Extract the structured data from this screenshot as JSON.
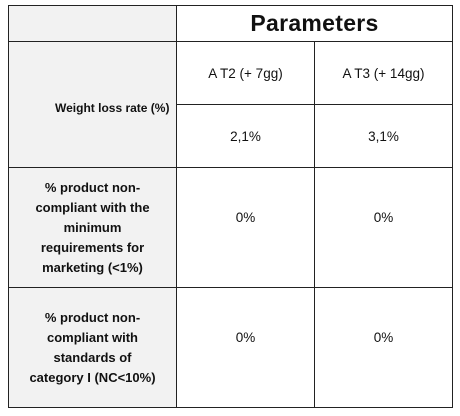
{
  "table": {
    "title": "Parameters",
    "columns": [
      "A T2 (+ 7gg)",
      "A T3 (+ 14gg)"
    ],
    "rows": [
      {
        "label": "Weight loss rate (%)",
        "values": [
          "2,1%",
          "3,1%"
        ]
      },
      {
        "label_lines": [
          "% product non-",
          "compliant with the",
          "minimum",
          "requirements for",
          "marketing (<1%)"
        ],
        "values": [
          "0%",
          "0%"
        ]
      },
      {
        "label_lines": [
          "% product non-",
          "compliant with",
          "standards of",
          "category I (NC<10%)"
        ],
        "values": [
          "0%",
          "0%"
        ]
      }
    ]
  }
}
